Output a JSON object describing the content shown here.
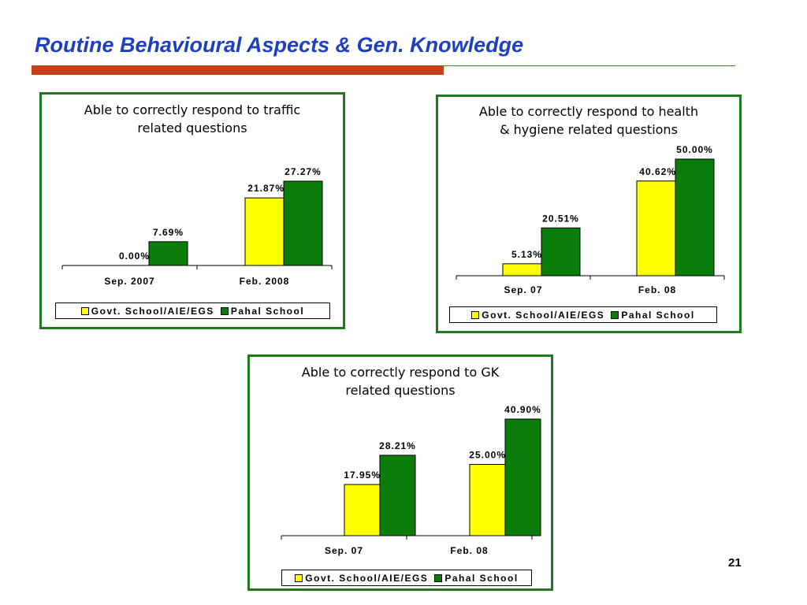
{
  "slide": {
    "title": "Routine Behavioural Aspects & Gen. Knowledge",
    "page_number": "21",
    "colors": {
      "title": "#1f3fbf",
      "rule": "#c8401a",
      "panel_border": "#1f7a1f"
    }
  },
  "series_styles": [
    {
      "name": "Govt. School/AIE/EGS",
      "color": "#ffff00"
    },
    {
      "name": "Pahal School",
      "color": "#0a7d0a"
    }
  ],
  "chart_data": [
    {
      "type": "bar",
      "title_lines": [
        "Able to correctly respond to traffic",
        "related questions"
      ],
      "categories": [
        "Sep. 2007",
        "Feb. 2008"
      ],
      "series": [
        {
          "name": "Govt. School/AIE/EGS",
          "values": [
            0.0,
            21.87
          ],
          "labels": [
            "0.00%",
            "21.87%"
          ]
        },
        {
          "name": "Pahal School",
          "values": [
            7.69,
            27.27
          ],
          "labels": [
            "7.69%",
            "27.27%"
          ]
        }
      ],
      "ylim": [
        0,
        27.27
      ],
      "grid": false,
      "legend_placement": "bottom"
    },
    {
      "type": "bar",
      "title_lines": [
        "Able to correctly respond to health",
        "& hygiene related questions"
      ],
      "categories": [
        "Sep. 07",
        "Feb. 08"
      ],
      "series": [
        {
          "name": "Govt. School/AIE/EGS",
          "values": [
            5.13,
            40.62
          ],
          "labels": [
            "5.13%",
            "40.62%"
          ]
        },
        {
          "name": "Pahal School",
          "values": [
            20.51,
            50.0
          ],
          "labels": [
            "20.51%",
            "50.00%"
          ]
        }
      ],
      "ylim": [
        0,
        50
      ],
      "grid": false,
      "legend_placement": "bottom"
    },
    {
      "type": "bar",
      "title_lines": [
        "Able to correctly respond to GK",
        "related questions"
      ],
      "categories": [
        "Sep. 07",
        "Feb. 08"
      ],
      "series": [
        {
          "name": "Govt. School/AIE/EGS",
          "values": [
            17.95,
            25.0
          ],
          "labels": [
            "17.95%",
            "25.00%"
          ]
        },
        {
          "name": "Pahal School",
          "values": [
            28.21,
            40.9
          ],
          "labels": [
            "28.21%",
            "40.90%"
          ]
        }
      ],
      "ylim": [
        0,
        40.9
      ],
      "grid": false,
      "legend_placement": "bottom"
    }
  ]
}
